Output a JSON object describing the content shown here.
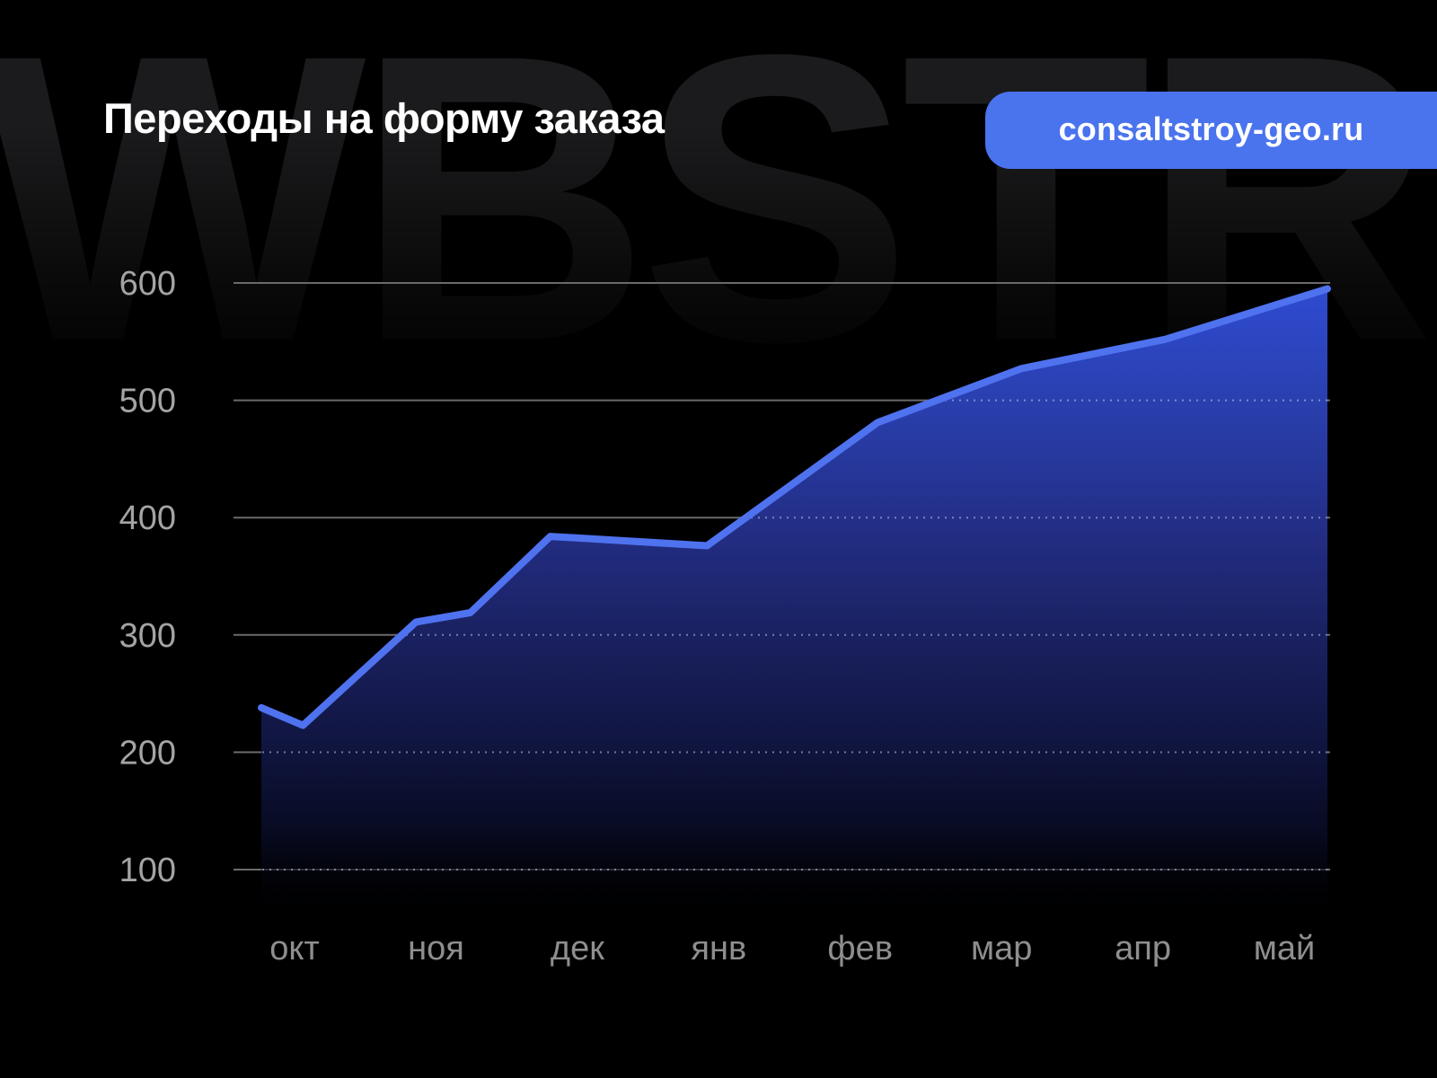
{
  "title": "Переходы на форму заказа",
  "watermark": "WBSTR",
  "badge": {
    "label": "consaltstroy-geo.ru",
    "bg_color": "#4a73ee",
    "text_color": "#ffffff"
  },
  "colors": {
    "background": "#000000",
    "line": "#4f72ef",
    "grid_solid": "#6a6a6e",
    "grid_dash": "rgba(214,221,246,0.5)",
    "y_label": "#a4a4a4",
    "x_label": "#8e8e8e",
    "fill_stops": [
      "#2f4bd2",
      "#2a40b0",
      "#232e86",
      "#1a2160",
      "#101540",
      "#070a20",
      "#000000"
    ]
  },
  "chart_data": {
    "type": "area",
    "title": "Переходы на форму заказа",
    "categories": [
      "окт",
      "ноя",
      "дек",
      "янв",
      "фев",
      "мар",
      "апр",
      "май"
    ],
    "values": [
      223,
      315,
      384,
      376,
      481,
      527,
      552,
      595
    ],
    "y_ticks": [
      600,
      500,
      400,
      300,
      200,
      100
    ],
    "ylim": [
      100,
      600
    ],
    "grid": true,
    "legend": false,
    "polyline": [
      {
        "f": 0.0,
        "v": 238
      },
      {
        "f": 0.039,
        "v": 223
      },
      {
        "f": 0.145,
        "v": 311
      },
      {
        "f": 0.196,
        "v": 319
      },
      {
        "f": 0.271,
        "v": 384
      },
      {
        "f": 0.418,
        "v": 376
      },
      {
        "f": 0.578,
        "v": 481
      },
      {
        "f": 0.713,
        "v": 527
      },
      {
        "f": 0.848,
        "v": 552
      },
      {
        "f": 1.0,
        "v": 595
      }
    ]
  }
}
